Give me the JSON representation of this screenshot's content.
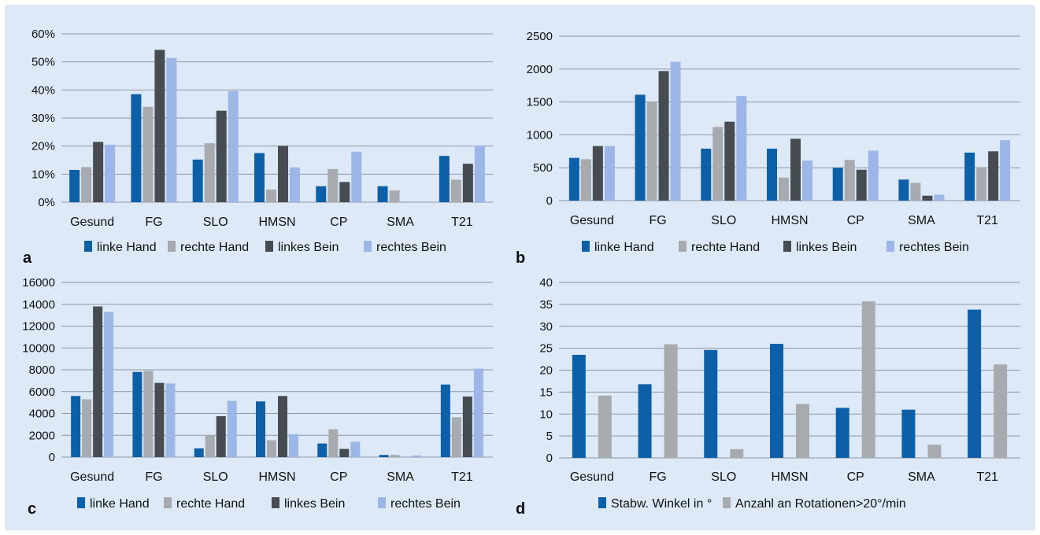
{
  "colors": {
    "background": "#dde9f6",
    "gridline": "#8f98a3",
    "series": [
      "#0d5fa8",
      "#a7abaf",
      "#474c53",
      "#9cb6e8"
    ]
  },
  "chart_data": [
    {
      "panel": "a",
      "type": "bar",
      "categories": [
        "Gesund",
        "FG",
        "SLO",
        "HMSN",
        "CP",
        "SMA",
        "T21"
      ],
      "ylim": [
        0,
        60
      ],
      "yticks": [
        0,
        10,
        20,
        30,
        40,
        50,
        60
      ],
      "tick_format": "percent",
      "grid": true,
      "legend_position": "bottom",
      "series": [
        {
          "name": "linke Hand",
          "values": [
            11.5,
            38.5,
            15.2,
            17.5,
            5.7,
            5.7,
            16.5
          ]
        },
        {
          "name": "rechte Hand",
          "values": [
            12.5,
            34,
            21,
            4.5,
            11.8,
            4.2,
            8
          ]
        },
        {
          "name": "linkes Bein",
          "values": [
            21.5,
            54.3,
            32.6,
            20.1,
            7.2,
            0,
            13.7
          ]
        },
        {
          "name": "rechtes Bein",
          "values": [
            20.5,
            51.4,
            39.6,
            12.4,
            18,
            0,
            20.2
          ]
        }
      ]
    },
    {
      "panel": "b",
      "type": "bar",
      "categories": [
        "Gesund",
        "FG",
        "SLO",
        "HMSN",
        "CP",
        "SMA",
        "T21"
      ],
      "ylim": [
        0,
        2500
      ],
      "yticks": [
        0,
        500,
        1000,
        1500,
        2000,
        2500
      ],
      "tick_format": "number",
      "grid": true,
      "legend_position": "bottom",
      "series": [
        {
          "name": "linke Hand",
          "values": [
            650,
            1610,
            790,
            790,
            500,
            320,
            730
          ]
        },
        {
          "name": "rechte Hand",
          "values": [
            630,
            1500,
            1120,
            350,
            620,
            270,
            510
          ]
        },
        {
          "name": "linkes Bein",
          "values": [
            830,
            1970,
            1200,
            940,
            470,
            75,
            750
          ]
        },
        {
          "name": "rechtes Bein",
          "values": [
            830,
            2110,
            1590,
            610,
            760,
            90,
            920
          ]
        }
      ]
    },
    {
      "panel": "c",
      "type": "bar",
      "categories": [
        "Gesund",
        "FG",
        "SLO",
        "HMSN",
        "CP",
        "SMA",
        "T21"
      ],
      "ylim": [
        0,
        16000
      ],
      "yticks": [
        0,
        2000,
        4000,
        6000,
        8000,
        10000,
        12000,
        14000,
        16000
      ],
      "tick_format": "number",
      "grid": true,
      "legend_position": "bottom",
      "series": [
        {
          "name": "linke Hand",
          "values": [
            5600,
            7800,
            800,
            5100,
            1250,
            200,
            6650
          ]
        },
        {
          "name": "rechte Hand",
          "values": [
            5300,
            7900,
            2000,
            1550,
            2550,
            200,
            3650
          ]
        },
        {
          "name": "linkes Bein",
          "values": [
            13800,
            6800,
            3750,
            5600,
            750,
            0,
            5550
          ]
        },
        {
          "name": "rechtes Bein",
          "values": [
            13300,
            6750,
            5150,
            2100,
            1400,
            150,
            8100
          ]
        }
      ]
    },
    {
      "panel": "d",
      "type": "bar",
      "categories": [
        "Gesund",
        "FG",
        "SLO",
        "HMSN",
        "CP",
        "SMA",
        "T21"
      ],
      "ylim": [
        0,
        40
      ],
      "yticks": [
        0,
        5,
        10,
        15,
        20,
        25,
        30,
        35,
        40
      ],
      "tick_format": "number",
      "grid": true,
      "legend_position": "bottom",
      "series": [
        {
          "name": "Stabw. Winkel in °",
          "values": [
            23.5,
            16.8,
            24.6,
            26,
            11.4,
            11,
            33.8
          ]
        },
        {
          "name": "Anzahl an Rotationen>20°/min",
          "values": [
            14.2,
            25.9,
            2,
            12.3,
            35.7,
            3,
            21.3
          ]
        }
      ]
    }
  ]
}
